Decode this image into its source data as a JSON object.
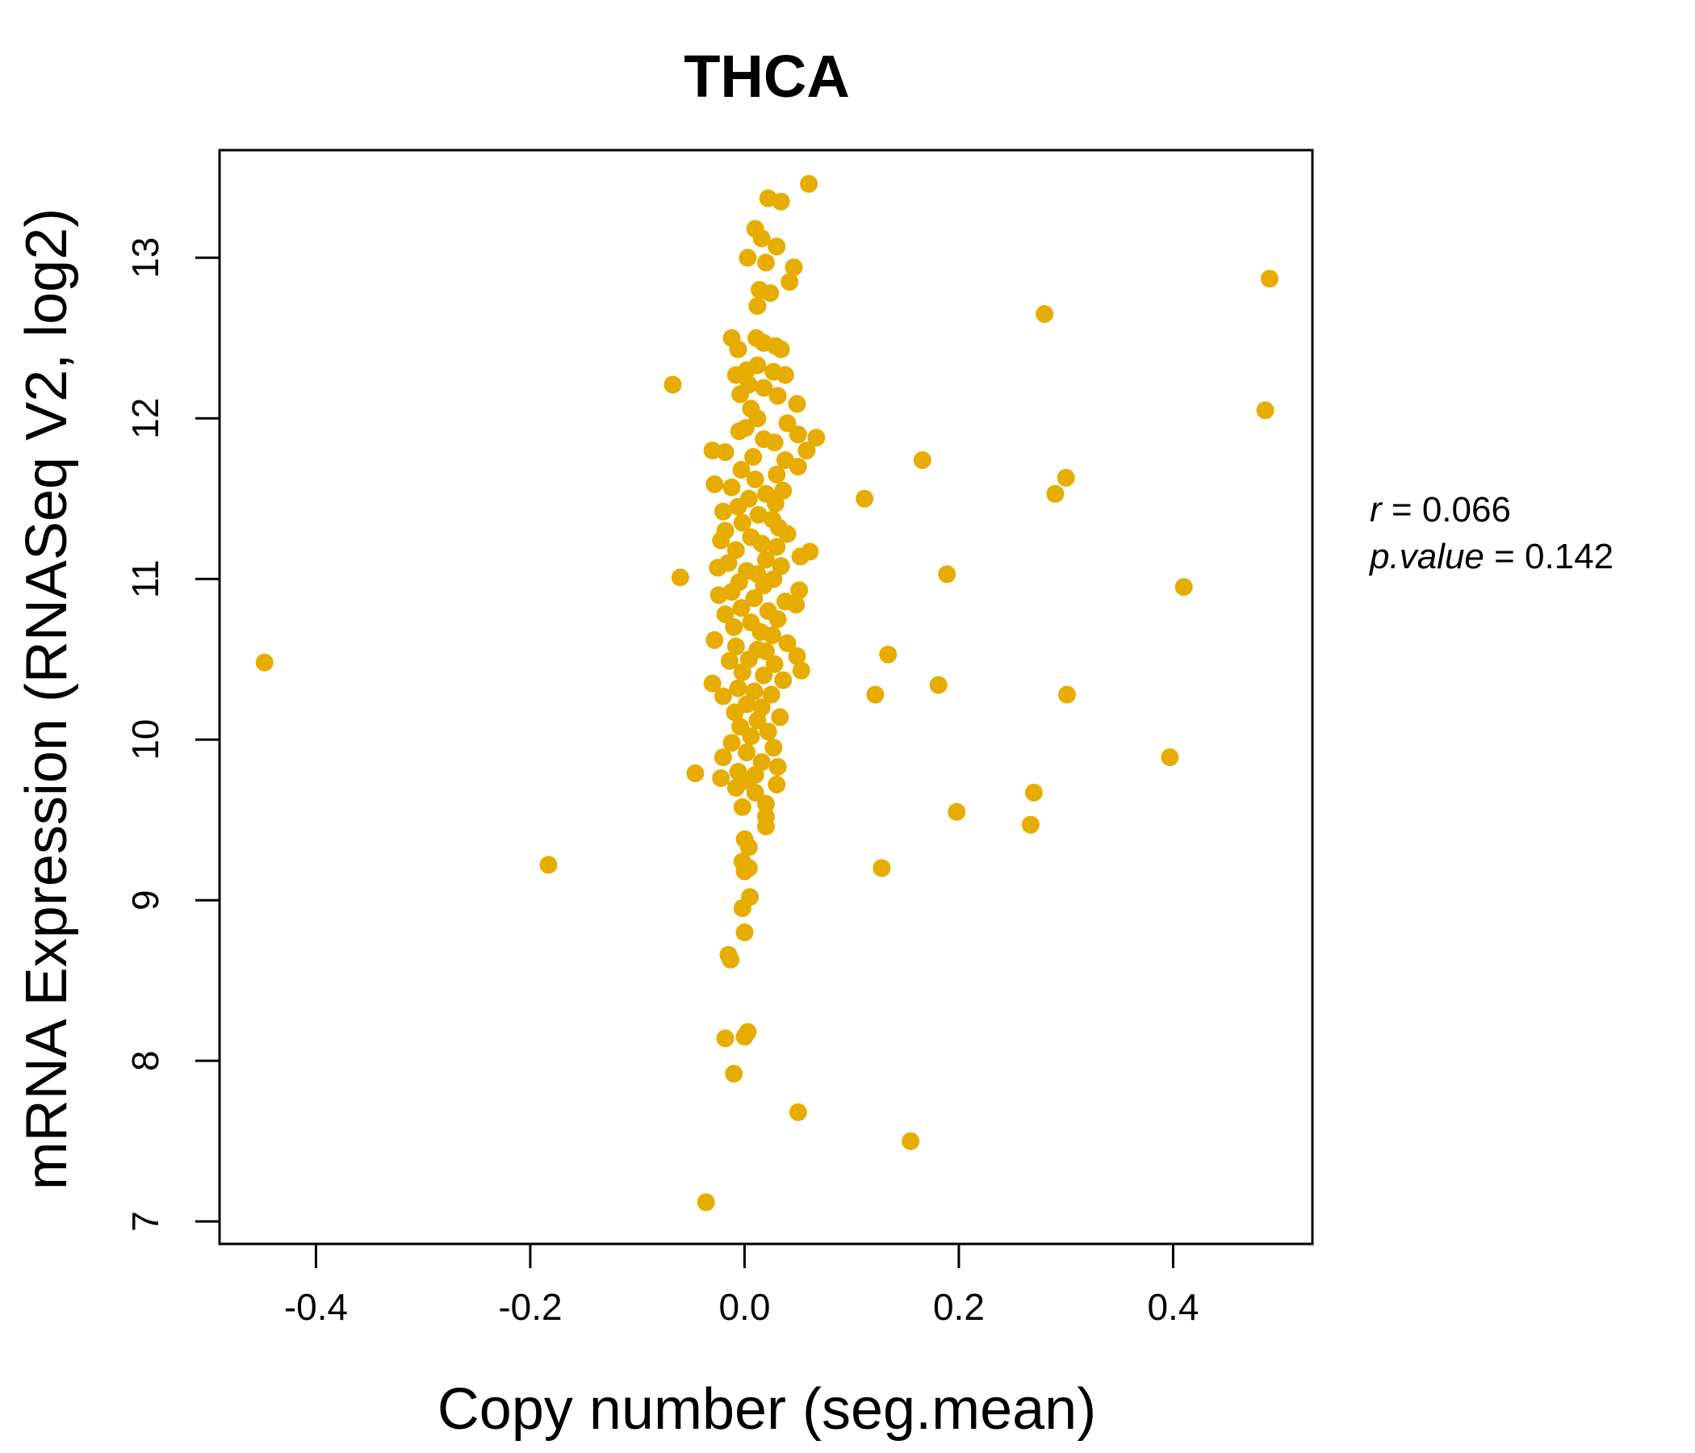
{
  "chart_data": {
    "type": "scatter",
    "title": "THCA",
    "xlabel": "Copy number (seg.mean)",
    "ylabel": "mRNA Expression (RNASeq V2, log2)",
    "xlim": [
      -0.49,
      0.53
    ],
    "ylim": [
      6.86,
      13.67
    ],
    "xticks": [
      -0.4,
      -0.2,
      0.0,
      0.2,
      0.4
    ],
    "xtick_labels": [
      "-0.4",
      "-0.2",
      "0.0",
      "0.2",
      "0.4"
    ],
    "yticks": [
      7,
      8,
      9,
      10,
      11,
      12,
      13
    ],
    "ytick_labels": [
      "7",
      "8",
      "9",
      "10",
      "11",
      "12",
      "13"
    ],
    "grid": false,
    "point_color": "#E6AC00",
    "stats": {
      "r_label": "r",
      "r_value": "0.066",
      "p_label": "p.value",
      "p_value": "0.142"
    },
    "points": [
      [
        -0.448,
        10.48
      ],
      [
        -0.183,
        9.22
      ],
      [
        -0.067,
        12.21
      ],
      [
        -0.06,
        11.01
      ],
      [
        -0.046,
        9.79
      ],
      [
        -0.036,
        7.12
      ],
      [
        0.06,
        13.46
      ],
      [
        0.022,
        13.37
      ],
      [
        0.034,
        13.35
      ],
      [
        0.01,
        13.18
      ],
      [
        0.016,
        13.12
      ],
      [
        0.03,
        13.07
      ],
      [
        0.003,
        13.0
      ],
      [
        0.02,
        12.97
      ],
      [
        0.046,
        12.94
      ],
      [
        0.042,
        12.85
      ],
      [
        0.014,
        12.8
      ],
      [
        0.024,
        12.78
      ],
      [
        0.012,
        12.7
      ],
      [
        -0.012,
        12.5
      ],
      [
        0.011,
        12.5
      ],
      [
        0.018,
        12.47
      ],
      [
        0.029,
        12.45
      ],
      [
        0.034,
        12.43
      ],
      [
        -0.006,
        12.43
      ],
      [
        0.002,
        12.3
      ],
      [
        0.012,
        12.33
      ],
      [
        0.027,
        12.29
      ],
      [
        0.038,
        12.27
      ],
      [
        -0.008,
        12.27
      ],
      [
        0.004,
        12.21
      ],
      [
        0.018,
        12.19
      ],
      [
        0.031,
        12.14
      ],
      [
        -0.004,
        12.15
      ],
      [
        0.049,
        12.09
      ],
      [
        0.006,
        12.06
      ],
      [
        0.012,
        12.0
      ],
      [
        0.04,
        11.97
      ],
      [
        0.001,
        11.94
      ],
      [
        -0.005,
        11.92
      ],
      [
        0.05,
        11.9
      ],
      [
        0.067,
        11.88
      ],
      [
        0.018,
        11.87
      ],
      [
        0.028,
        11.85
      ],
      [
        0.058,
        11.8
      ],
      [
        -0.03,
        11.8
      ],
      [
        -0.018,
        11.79
      ],
      [
        0.008,
        11.76
      ],
      [
        0.038,
        11.74
      ],
      [
        0.05,
        11.7
      ],
      [
        -0.003,
        11.68
      ],
      [
        0.03,
        11.65
      ],
      [
        0.01,
        11.62
      ],
      [
        -0.028,
        11.59
      ],
      [
        -0.012,
        11.57
      ],
      [
        0.036,
        11.55
      ],
      [
        0.02,
        11.53
      ],
      [
        0.004,
        11.5
      ],
      [
        0.029,
        11.47
      ],
      [
        -0.006,
        11.45
      ],
      [
        -0.02,
        11.42
      ],
      [
        0.013,
        11.4
      ],
      [
        0.026,
        11.37
      ],
      [
        -0.002,
        11.35
      ],
      [
        0.032,
        11.32
      ],
      [
        -0.018,
        11.3
      ],
      [
        0.04,
        11.28
      ],
      [
        0.006,
        11.26
      ],
      [
        -0.022,
        11.24
      ],
      [
        0.016,
        11.22
      ],
      [
        0.03,
        11.2
      ],
      [
        -0.008,
        11.18
      ],
      [
        0.061,
        11.17
      ],
      [
        0.052,
        11.14
      ],
      [
        0.02,
        11.12
      ],
      [
        -0.015,
        11.1
      ],
      [
        0.034,
        11.08
      ],
      [
        -0.025,
        11.07
      ],
      [
        0.002,
        11.05
      ],
      [
        0.012,
        11.03
      ],
      [
        0.027,
        11.0
      ],
      [
        -0.005,
        10.98
      ],
      [
        0.018,
        10.96
      ],
      [
        0.051,
        10.93
      ],
      [
        -0.012,
        10.92
      ],
      [
        -0.024,
        10.9
      ],
      [
        0.009,
        10.88
      ],
      [
        0.038,
        10.86
      ],
      [
        0.048,
        10.84
      ],
      [
        -0.003,
        10.82
      ],
      [
        0.022,
        10.8
      ],
      [
        -0.018,
        10.78
      ],
      [
        0.031,
        10.75
      ],
      [
        0.006,
        10.73
      ],
      [
        -0.01,
        10.7
      ],
      [
        0.015,
        10.67
      ],
      [
        0.026,
        10.65
      ],
      [
        -0.028,
        10.62
      ],
      [
        0.04,
        10.6
      ],
      [
        -0.008,
        10.58
      ],
      [
        0.012,
        10.56
      ],
      [
        0.02,
        10.55
      ],
      [
        0.049,
        10.52
      ],
      [
        0.004,
        10.5
      ],
      [
        -0.014,
        10.49
      ],
      [
        0.028,
        10.47
      ],
      [
        0.053,
        10.43
      ],
      [
        -0.002,
        10.42
      ],
      [
        0.018,
        10.4
      ],
      [
        0.036,
        10.37
      ],
      [
        -0.03,
        10.35
      ],
      [
        -0.006,
        10.32
      ],
      [
        0.009,
        10.3
      ],
      [
        0.025,
        10.28
      ],
      [
        -0.02,
        10.27
      ],
      [
        0.002,
        10.22
      ],
      [
        0.016,
        10.2
      ],
      [
        -0.009,
        10.17
      ],
      [
        0.033,
        10.14
      ],
      [
        0.012,
        10.12
      ],
      [
        -0.004,
        10.08
      ],
      [
        0.022,
        10.05
      ],
      [
        0.006,
        10.02
      ],
      [
        -0.012,
        9.98
      ],
      [
        0.027,
        9.95
      ],
      [
        0.002,
        9.92
      ],
      [
        -0.02,
        9.89
      ],
      [
        0.016,
        9.86
      ],
      [
        0.031,
        9.83
      ],
      [
        -0.006,
        9.8
      ],
      [
        0.01,
        9.78
      ],
      [
        -0.022,
        9.76
      ],
      [
        0.003,
        9.74
      ],
      [
        0.03,
        9.72
      ],
      [
        -0.008,
        9.7
      ],
      [
        0.01,
        9.67
      ],
      [
        0.02,
        9.6
      ],
      [
        -0.002,
        9.58
      ],
      [
        0.02,
        9.52
      ],
      [
        0.02,
        9.46
      ],
      [
        0.0,
        9.38
      ],
      [
        0.004,
        9.33
      ],
      [
        -0.002,
        9.24
      ],
      [
        0.004,
        9.2
      ],
      [
        0.0,
        9.18
      ],
      [
        0.005,
        9.02
      ],
      [
        -0.002,
        8.95
      ],
      [
        0.0,
        8.8
      ],
      [
        -0.015,
        8.66
      ],
      [
        -0.013,
        8.63
      ],
      [
        0.003,
        8.18
      ],
      [
        0.0,
        8.15
      ],
      [
        -0.018,
        8.14
      ],
      [
        -0.01,
        7.92
      ],
      [
        0.05,
        7.68
      ],
      [
        0.112,
        11.5
      ],
      [
        0.166,
        11.74
      ],
      [
        0.189,
        11.03
      ],
      [
        0.134,
        10.53
      ],
      [
        0.181,
        10.34
      ],
      [
        0.122,
        10.28
      ],
      [
        0.198,
        9.55
      ],
      [
        0.128,
        9.2
      ],
      [
        0.155,
        7.5
      ],
      [
        0.28,
        12.65
      ],
      [
        0.3,
        11.63
      ],
      [
        0.29,
        11.53
      ],
      [
        0.301,
        10.28
      ],
      [
        0.27,
        9.67
      ],
      [
        0.267,
        9.47
      ],
      [
        0.41,
        10.95
      ],
      [
        0.397,
        9.89
      ],
      [
        0.49,
        12.87
      ],
      [
        0.486,
        12.05
      ]
    ]
  }
}
